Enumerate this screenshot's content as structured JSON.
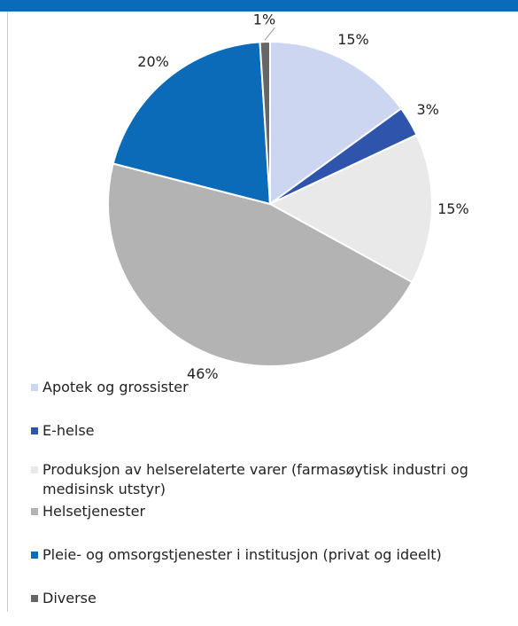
{
  "chart_data": {
    "type": "pie",
    "categories": [
      "Apotek og grossister",
      "E-helse",
      "Produksjon av helserelaterte varer (farmasøytisk industri og medisinsk utstyr)",
      "Helsetjenester",
      "Pleie- og omsorgstjenester i institusjon (privat og ideelt)",
      "Diverse"
    ],
    "values": [
      15,
      3,
      15,
      46,
      20,
      1
    ],
    "value_labels": [
      "15%",
      "3%",
      "15%",
      "46%",
      "20%",
      "1%"
    ],
    "colors": [
      "#cdd6f0",
      "#2f54ab",
      "#e9e9e9",
      "#b3b3b3",
      "#0b6bb8",
      "#666666"
    ],
    "legend": "bottom"
  }
}
